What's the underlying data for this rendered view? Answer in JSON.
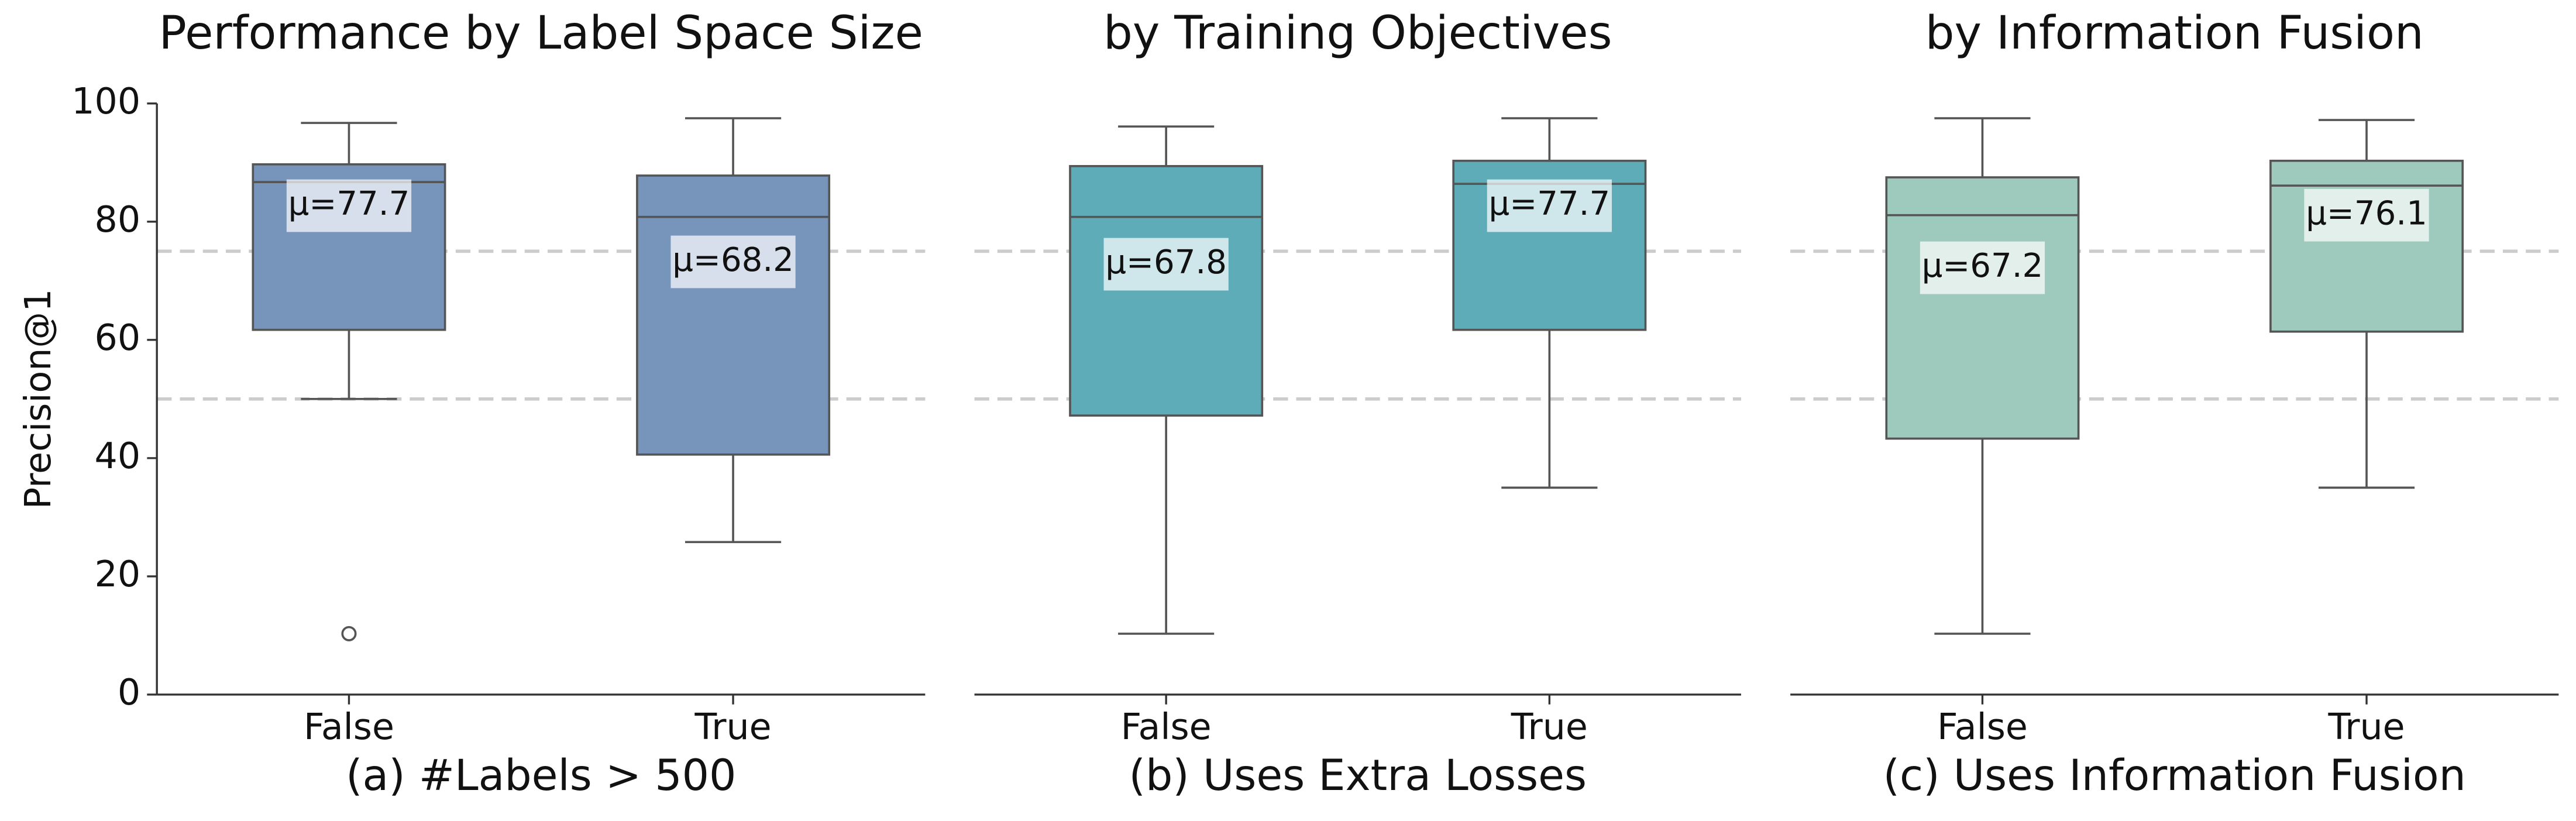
{
  "chart_data": [
    {
      "type": "box",
      "title": "Performance by Label Space Size",
      "xlabel": "(a) #Labels > 500",
      "ylabel": "Precision@1",
      "categories": [
        "False",
        "True"
      ],
      "color": "#7794bb",
      "ylim": [
        0,
        100
      ],
      "yticks": [
        0,
        20,
        40,
        60,
        80,
        100
      ],
      "reference_lines": [
        50,
        75
      ],
      "boxes": [
        {
          "min": 50,
          "q1": 61.7,
          "median": 86.7,
          "q3": 89.7,
          "max": 96.7,
          "outliers": [
            10.3
          ],
          "mean": 77.7,
          "mean_label": "μ=77.7"
        },
        {
          "min": 25.8,
          "q1": 40.6,
          "median": 80.8,
          "q3": 87.8,
          "max": 97.5,
          "outliers": [],
          "mean": 68.2,
          "mean_label": "μ=68.2"
        }
      ]
    },
    {
      "type": "box",
      "title": "by Training Objectives",
      "xlabel": "(b) Uses Extra Losses",
      "categories": [
        "False",
        "True"
      ],
      "color": "#5eacb8",
      "ylim": [
        0,
        100
      ],
      "reference_lines": [
        50,
        75
      ],
      "boxes": [
        {
          "min": 10.3,
          "q1": 47.2,
          "median": 80.8,
          "q3": 89.4,
          "max": 96.1,
          "outliers": [],
          "mean": 67.8,
          "mean_label": "μ=67.8"
        },
        {
          "min": 35,
          "q1": 61.7,
          "median": 86.4,
          "q3": 90.3,
          "max": 97.5,
          "outliers": [],
          "mean": 77.7,
          "mean_label": "μ=77.7"
        }
      ]
    },
    {
      "type": "box",
      "title": "by Information Fusion",
      "xlabel": "(c) Uses Information Fusion",
      "categories": [
        "False",
        "True"
      ],
      "color": "#9ecabd",
      "ylim": [
        0,
        100
      ],
      "reference_lines": [
        50,
        75
      ],
      "boxes": [
        {
          "min": 10.3,
          "q1": 43.3,
          "median": 81.1,
          "q3": 87.5,
          "max": 97.5,
          "outliers": [],
          "mean": 67.2,
          "mean_label": "μ=67.2"
        },
        {
          "min": 35,
          "q1": 61.4,
          "median": 86.1,
          "q3": 90.3,
          "max": 97.2,
          "outliers": [],
          "mean": 76.1,
          "mean_label": "μ=76.1"
        }
      ]
    }
  ]
}
